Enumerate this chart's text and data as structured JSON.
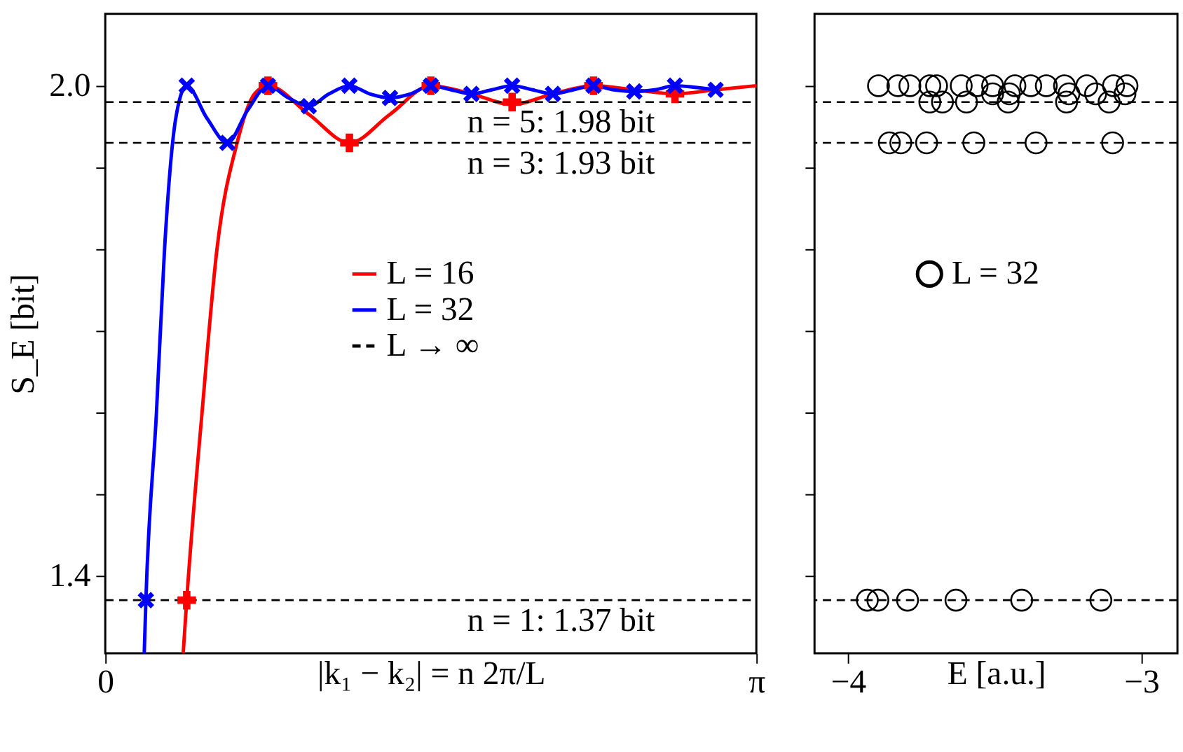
{
  "chart_data": [
    {
      "type": "line",
      "xlabel": "|k₁ − k₂| = n 2π/L",
      "ylabel": "S_E [bit]",
      "xlim": [
        0,
        3.1416
      ],
      "ylim": [
        1.305,
        2.088
      ],
      "xticks": [
        0,
        {
          "value": 3.1416,
          "label": "π"
        }
      ],
      "yticks": [
        1.4,
        {
          "value": 1.5,
          "label": null
        },
        {
          "value": 1.6,
          "label": null
        },
        {
          "value": 1.7,
          "label": null
        },
        {
          "value": 1.8,
          "label": null
        },
        {
          "value": 1.9,
          "label": null
        },
        {
          "value": 2.0,
          "label": "2.0"
        }
      ],
      "grid": false,
      "legend": "center",
      "series": [
        {
          "name": "L = 16",
          "type": "line",
          "color": "#ff0000",
          "marker": "none",
          "line_style": "solid",
          "x": [
            0.376,
            0.393,
            0.467,
            0.539,
            0.636,
            0.72,
            0.785,
            0.982,
            1.178,
            1.374,
            1.571,
            1.767,
            1.963,
            2.16,
            2.356,
            2.553,
            2.749,
            2.945,
            3.1416
          ],
          "values": [
            1.305,
            1.37,
            1.6,
            1.8,
            1.93,
            1.99,
            2.0,
            1.965,
            1.93,
            1.965,
            2.0,
            1.99,
            1.977,
            1.99,
            2.0,
            1.995,
            1.99,
            1.995,
            2.0
          ]
        },
        {
          "name": "L = 32",
          "type": "line",
          "color": "#0000ff",
          "marker": "none",
          "line_style": "solid",
          "x": [
            0.188,
            0.196,
            0.247,
            0.286,
            0.34,
            0.393,
            0.491,
            0.589,
            0.687,
            0.785,
            0.884,
            0.982,
            1.08,
            1.178,
            1.276,
            1.374,
            1.473,
            1.571,
            1.669,
            1.767,
            1.865,
            1.963,
            2.062,
            2.16,
            2.258,
            2.356,
            2.454,
            2.553,
            2.651,
            2.749,
            2.847,
            2.945
          ],
          "values": [
            1.305,
            1.37,
            1.6,
            1.8,
            1.96,
            2.0,
            1.96,
            1.93,
            1.97,
            2.0,
            1.985,
            1.975,
            1.99,
            2.0,
            1.99,
            1.985,
            1.99,
            2.0,
            1.995,
            1.99,
            1.995,
            2.0,
            1.995,
            1.99,
            1.995,
            2.0,
            1.995,
            1.993,
            1.995,
            2.0,
            1.998,
            1.995
          ]
        },
        {
          "name": "L → ∞",
          "type": "line",
          "color": "#000000",
          "marker": "none",
          "line_style": "dashed",
          "x": [
            0,
            3.1416
          ],
          "values": [
            1.98,
            1.98
          ]
        },
        {
          "type": "line",
          "color": "#000000",
          "marker": "none",
          "line_style": "dashed",
          "x": [
            0,
            3.1416
          ],
          "values": [
            1.93,
            1.93
          ]
        },
        {
          "type": "line",
          "color": "#000000",
          "marker": "none",
          "line_style": "dashed",
          "x": [
            0,
            3.1416
          ],
          "values": [
            1.37,
            1.37
          ]
        },
        {
          "type": "scatter",
          "color": "#ff0000",
          "marker": "cross",
          "x": [
            0.393,
            0.785,
            1.178,
            1.571,
            1.963,
            2.356,
            2.749
          ],
          "values": [
            1.37,
            2.0,
            1.93,
            2.0,
            1.98,
            2.0,
            1.99
          ]
        },
        {
          "type": "scatter",
          "color": "#0000ff",
          "marker": "x",
          "x": [
            0.196,
            0.393,
            0.589,
            0.785,
            0.982,
            1.178,
            1.374,
            1.571,
            1.767,
            1.963,
            2.16,
            2.356,
            2.553,
            2.749,
            2.945
          ],
          "values": [
            1.37,
            2.0,
            1.93,
            2.0,
            1.975,
            2.0,
            1.985,
            2.0,
            1.99,
            2.0,
            1.99,
            2.0,
            1.993,
            2.0,
            1.995
          ]
        }
      ],
      "annotations": [
        {
          "text": "n = 5: 1.98 bit",
          "y": 1.98
        },
        {
          "text": "n = 3: 1.93 bit",
          "y": 1.93
        },
        {
          "text": "n = 1: 1.37 bit",
          "y": 1.37
        }
      ]
    },
    {
      "type": "scatter",
      "xlabel": "E [a.u.]",
      "xlim": [
        -4.114,
        -2.877
      ],
      "ylim": [
        1.305,
        2.088
      ],
      "xticks": [
        {
          "value": -4,
          "label": "−4"
        },
        {
          "value": -3,
          "label": "−3"
        }
      ],
      "yticks": [
        {
          "value": 1.4,
          "label": null
        },
        {
          "value": 1.5,
          "label": null
        },
        {
          "value": 1.6,
          "label": null
        },
        {
          "value": 1.7,
          "label": null
        },
        {
          "value": 1.8,
          "label": null
        },
        {
          "value": 1.9,
          "label": null
        },
        {
          "value": 2.0,
          "label": null
        }
      ],
      "tick_labels": "x",
      "grid": false,
      "legend": "center",
      "ref_lines": [
        {
          "axis": "y",
          "value": 1.98,
          "line_style": "dashed",
          "color": "#000000"
        },
        {
          "axis": "y",
          "value": 1.93,
          "line_style": "dashed",
          "color": "#000000"
        },
        {
          "axis": "y",
          "value": 1.37,
          "line_style": "dashed",
          "color": "#000000"
        }
      ],
      "series": [
        {
          "name": "L = 32",
          "color": "#000000",
          "marker": "circle",
          "x": [
            -3.934,
            -3.898,
            -3.797,
            -3.632,
            -3.408,
            -3.138,
            -3.859,
            -3.82,
            -3.732,
            -3.571,
            -3.359,
            -3.098,
            -3.721,
            -3.678,
            -3.596,
            -3.454,
            -3.255,
            -3.11,
            -3.896,
            -3.83,
            -3.789,
            -3.721,
            -3.698,
            -3.614,
            -3.56,
            -3.507,
            -3.431,
            -3.377,
            -3.324,
            -3.262,
            -3.186,
            -3.095,
            -3.049,
            -3.507,
            -3.45,
            -3.247,
            -3.156,
            -3.056
          ],
          "values": [
            1.37,
            1.37,
            1.37,
            1.37,
            1.37,
            1.37,
            1.93,
            1.93,
            1.93,
            1.93,
            1.93,
            1.93,
            1.98,
            1.98,
            1.98,
            1.98,
            1.98,
            1.98,
            2.0,
            2.0,
            2.0,
            2.0,
            2.0,
            2.0,
            2.0,
            2.0,
            2.0,
            2.0,
            2.0,
            2.0,
            2.0,
            2.0,
            2.0,
            1.99,
            1.99,
            1.99,
            1.99,
            1.99
          ]
        }
      ]
    }
  ]
}
